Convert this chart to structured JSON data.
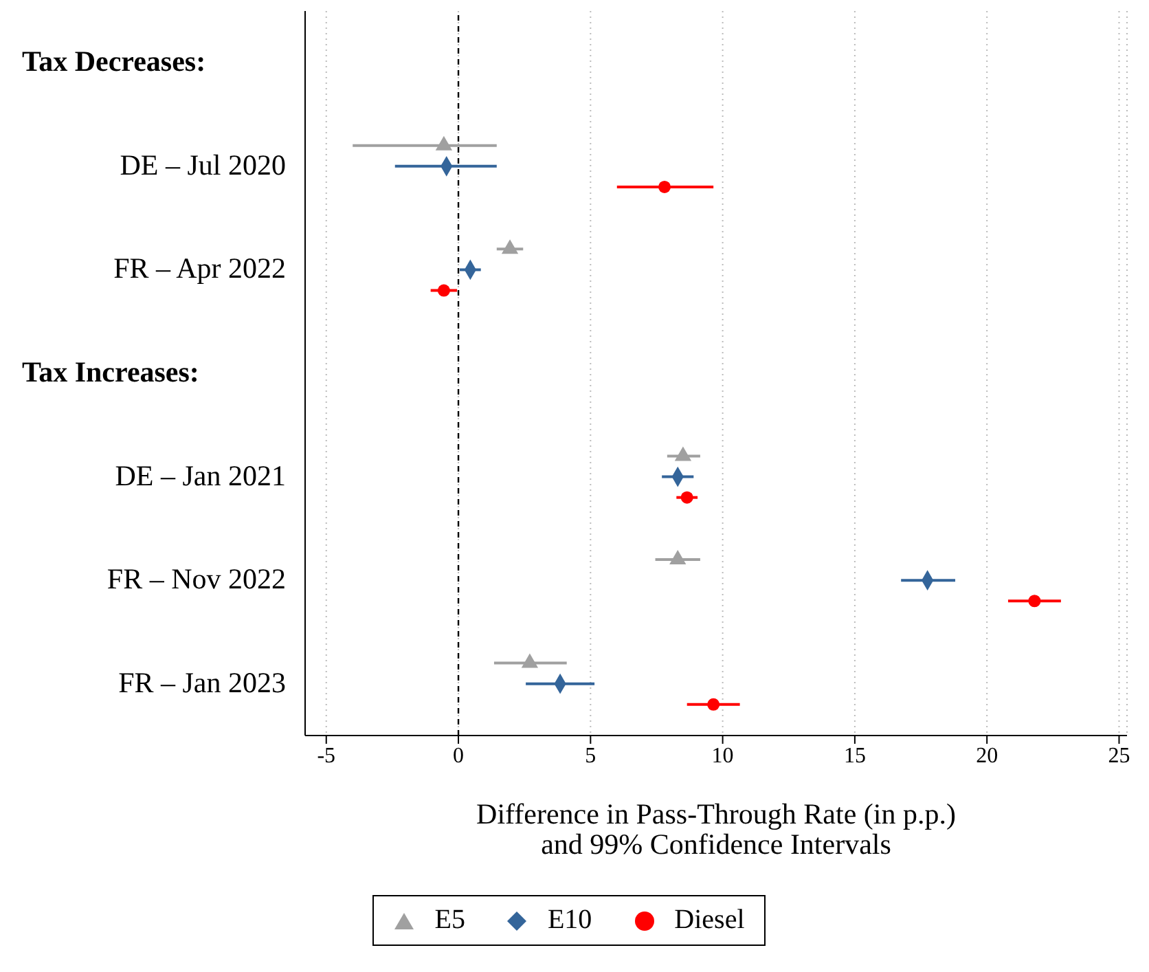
{
  "chart_data": {
    "type": "scatter",
    "orientation": "horizontal",
    "xlabel": "Difference in Pass-Through Rate (in p.p.)\nand 99% Confidence Intervals",
    "categories": [
      null,
      "DE – Jul 2020",
      "FR – Apr 2022",
      null,
      "DE – Jan 2021",
      "FR – Nov 2022",
      "FR – Jan 2023"
    ],
    "annotations": [
      "Tax Decreases:",
      "Tax Increases:"
    ],
    "xlim": [
      -5.8,
      25.3
    ],
    "xticks": [
      -5,
      0,
      5,
      10,
      15,
      20,
      25
    ],
    "grid": "x",
    "legend": "bottom",
    "ref_lines": [
      {
        "axis": "x",
        "value": 0,
        "color": "#000000",
        "line_style": "dashed"
      }
    ],
    "series": [
      {
        "name": "E5",
        "color": "#a0a0a0",
        "marker": "triangle",
        "values": [
          null,
          -0.55,
          1.95,
          null,
          8.5,
          8.3,
          2.7
        ],
        "errors": [
          null,
          [
            -4.0,
            1.45
          ],
          [
            1.45,
            2.45
          ],
          null,
          [
            7.9,
            9.15
          ],
          [
            7.45,
            9.15
          ],
          [
            1.35,
            4.1
          ]
        ]
      },
      {
        "name": "E10",
        "color": "#34659a",
        "marker": "diamond",
        "values": [
          null,
          -0.45,
          0.45,
          null,
          8.3,
          17.75,
          3.85
        ],
        "errors": [
          null,
          [
            -2.4,
            1.45
          ],
          [
            0.05,
            0.85
          ],
          null,
          [
            7.7,
            8.9
          ],
          [
            16.75,
            18.8
          ],
          [
            2.55,
            5.15
          ]
        ]
      },
      {
        "name": "Diesel",
        "color": "#ff0000",
        "marker": "circle",
        "values": [
          null,
          7.8,
          -0.55,
          null,
          8.65,
          21.8,
          9.65
        ],
        "errors": [
          null,
          [
            6.0,
            9.65
          ],
          [
            -1.05,
            -0.05
          ],
          null,
          [
            8.25,
            9.05
          ],
          [
            20.8,
            22.8
          ],
          [
            8.65,
            10.65
          ]
        ]
      }
    ]
  }
}
